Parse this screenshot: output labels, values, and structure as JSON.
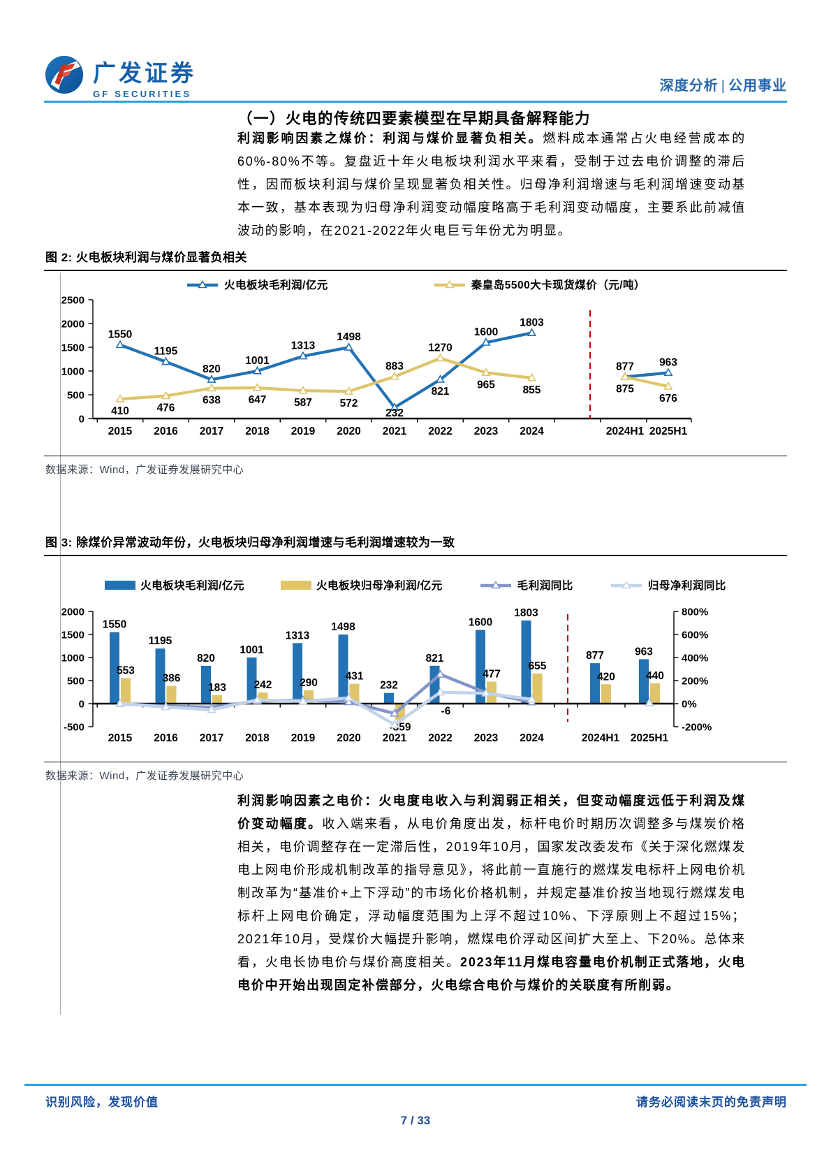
{
  "header": {
    "brand_cn": "广发证券",
    "brand_en": "GF SECURITIES",
    "category": "深度分析",
    "divider": "|",
    "subcategory": "公用事业"
  },
  "section_title": "（一）火电的传统四要素模型在早期具备解释能力",
  "paragraph1": {
    "lead_bold": "利润影响因素之煤价：利润与煤价显著负相关。",
    "body": "燃料成本通常占火电经营成本的60%-80%不等。复盘近十年火电板块利润水平来看，受制于过去电价调整的滞后性，因而板块利润与煤价呈现显著负相关性。归母净利润增速与毛利润增速变动基本一致，基本表现为归母净利润变动幅度略高于毛利润变动幅度，主要系此前减值波动的影响，在2021-2022年火电巨亏年份尤为明显。"
  },
  "figure2": {
    "title": "图 2: 火电板块利润与煤价显著负相关",
    "source": "数据来源：Wind，广发证券发展研究中心"
  },
  "figure3": {
    "title": "图 3: 除煤价异常波动年份，火电板块归母净利润增速与毛利润增速较为一致",
    "source": "数据来源：Wind，广发证券发展研究中心"
  },
  "paragraph2": {
    "lead_bold": "利润影响因素之电价：火电度电收入与利润弱正相关，但变动幅度远低于利润及煤价变动幅度。",
    "body": "收入端来看，从电价角度出发，标杆电价时期历次调整多与煤炭价格相关，电价调整存在一定滞后性，2019年10月，国家发改委发布《关于深化燃煤发电上网电价形成机制改革的指导意见》，将此前一直施行的燃煤发电标杆上网电价机制改革为“基准价+上下浮动”的市场化价格机制，并规定基准价按当地现行燃煤发电标杆上网电价确定，浮动幅度范围为上浮不超过10%、下浮原则上不超过15%；2021年10月，受煤价大幅提升影响，燃煤电价浮动区间扩大至上、下20%。总体来看，火电长协电价与煤价高度相关。",
    "tail_bold": "2023年11月煤电容量电价机制正式落地，火电电价中开始出现固定补偿部分，火电综合电价与煤价的关联度有所削弱。"
  },
  "footer": {
    "left": "识别风险，发现价值",
    "right": "请务必阅读末页的免责声明",
    "page": "7 / 33"
  },
  "colors": {
    "accent_line": "#2BA2DC",
    "blue_text": "#1B4F9C",
    "series_blue": "#2272B4",
    "series_yellow": "#DFC46A",
    "series_blue_gray": "#8296C7",
    "series_light_blue": "#C3D3EA",
    "separator_red": "#C00000"
  },
  "chart_data": [
    {
      "type": "line",
      "title": "火电板块利润与煤价显著负相关",
      "categories": [
        "2015",
        "2016",
        "2017",
        "2018",
        "2019",
        "2020",
        "2021",
        "2022",
        "2023",
        "2024",
        "2024H1",
        "2025H1"
      ],
      "series": [
        {
          "name": "火电板块毛利润/亿元",
          "color": "#2272B4",
          "values": [
            1550,
            1195,
            820,
            1001,
            1313,
            1498,
            232,
            821,
            1600,
            1803,
            877,
            963
          ],
          "label_pos": [
            "above",
            "above",
            "above",
            "above",
            "above",
            "above",
            "below",
            "below",
            "above",
            "above",
            "above",
            "above"
          ]
        },
        {
          "name": "秦皇岛5500大卡现货煤价（元/吨）",
          "color": "#DFC46A",
          "values": [
            410,
            476,
            638,
            647,
            587,
            572,
            883,
            1270,
            965,
            855,
            875,
            676
          ],
          "label_pos": [
            "below",
            "below",
            "below",
            "below",
            "below",
            "below",
            "above",
            "above",
            "below",
            "below",
            "below",
            "below"
          ]
        }
      ],
      "ylim": [
        0,
        2500
      ],
      "yticks": [
        0,
        500,
        1000,
        1500,
        2000,
        2500
      ],
      "separator_after_index": 9,
      "grid": false,
      "legend_position": "top"
    },
    {
      "type": "bar+line",
      "title": "除煤价异常波动年份，火电板块归母净利润增速与毛利润增速较为一致",
      "categories": [
        "2015",
        "2016",
        "2017",
        "2018",
        "2019",
        "2020",
        "2021",
        "2022",
        "2023",
        "2024",
        "2024H1",
        "2025H1"
      ],
      "bar_series": [
        {
          "name": "火电板块毛利润/亿元",
          "color": "#2272B4",
          "values": [
            1550,
            1195,
            820,
            1001,
            1313,
            1498,
            232,
            821,
            1600,
            1803,
            877,
            963
          ]
        },
        {
          "name": "火电板块归母净利润/亿元",
          "color": "#DFC46A",
          "values": [
            553,
            386,
            183,
            242,
            290,
            431,
            -359,
            -6,
            477,
            655,
            420,
            440
          ]
        }
      ],
      "line_series": [
        {
          "name": "毛利润同比",
          "color": "#8296C7",
          "axis": "right",
          "values_pct": [
            0,
            -23,
            -31,
            22,
            31,
            14,
            -85,
            254,
            95,
            13,
            null,
            10
          ]
        },
        {
          "name": "归母净利润同比",
          "color": "#C3D3EA",
          "axis": "right",
          "values_pct": [
            2,
            -30,
            -53,
            32,
            20,
            49,
            -183,
            98,
            90,
            37,
            null,
            5
          ]
        }
      ],
      "ylim_left": [
        -500,
        2000
      ],
      "yticks_left": [
        2000,
        1500,
        1000,
        500,
        0,
        -500
      ],
      "ylim_right_pct": [
        -200,
        800
      ],
      "yticks_right_pct": [
        800,
        600,
        400,
        200,
        0,
        -200
      ],
      "separator_after_index": 9,
      "grid": false,
      "legend_position": "top"
    }
  ]
}
